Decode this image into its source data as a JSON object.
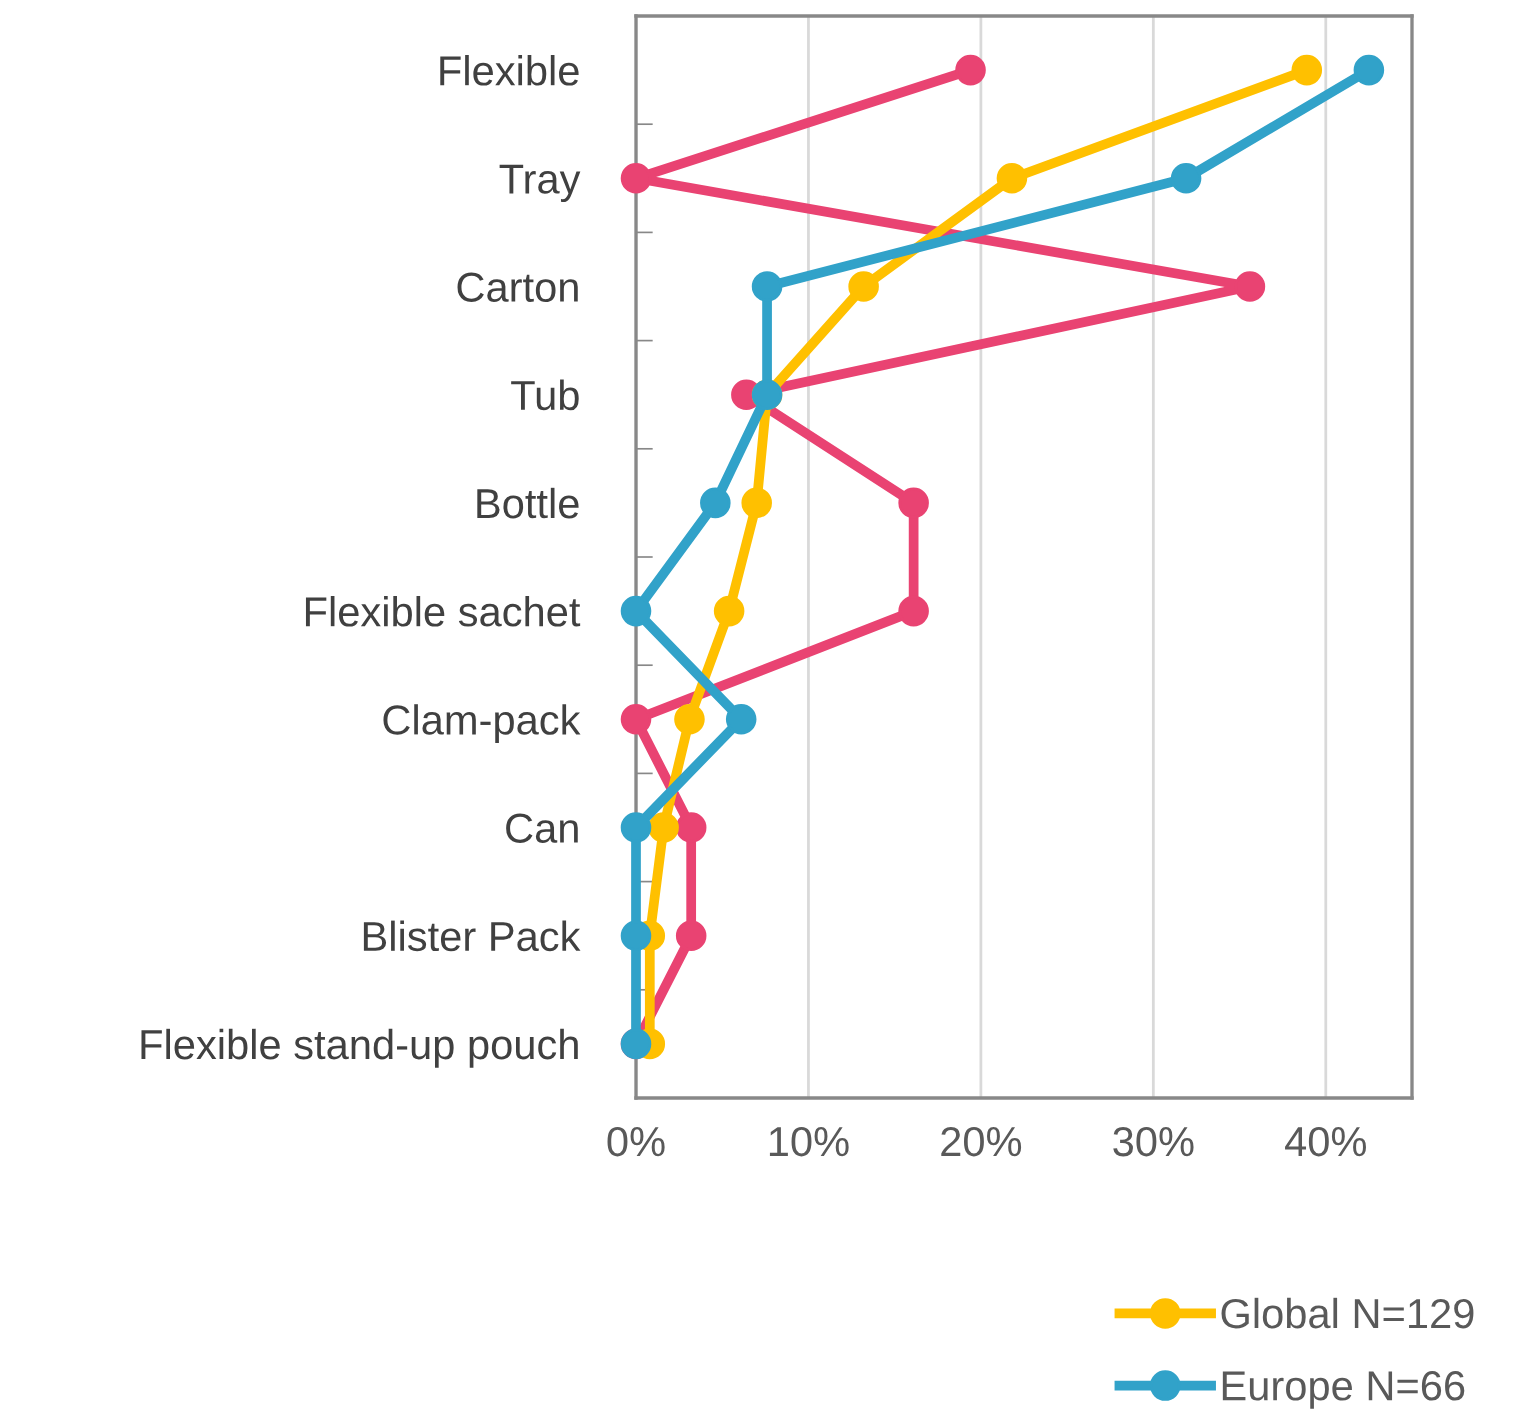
{
  "chart_data": {
    "type": "line",
    "orientation": "horizontal",
    "categories": [
      "Flexible",
      "Tray",
      "Carton",
      "Tub",
      "Bottle",
      "Flexible sachet",
      "Clam-pack",
      "Can",
      "Blister Pack",
      "Flexible stand-up pouch"
    ],
    "series": [
      {
        "color": "#e94372",
        "values": [
          19.4,
          0,
          35.6,
          6.4,
          16.1,
          16.1,
          0,
          3.2,
          3.2,
          0
        ]
      },
      {
        "name": "Global N=129",
        "color": "#ffc000",
        "values": [
          38.9,
          21.8,
          13.2,
          7.6,
          7.0,
          5.4,
          3.1,
          1.6,
          0.8,
          0.8
        ]
      },
      {
        "name": "Europe N=66",
        "color": "#31a2c9",
        "values": [
          42.5,
          31.9,
          7.6,
          7.6,
          4.6,
          0,
          6.1,
          0,
          0,
          0
        ]
      }
    ],
    "xlim": [
      0,
      45
    ],
    "xticks": [
      {
        "value": 0,
        "label": "0%"
      },
      {
        "value": 10,
        "label": "10%"
      },
      {
        "value": 20,
        "label": "20%"
      },
      {
        "value": 30,
        "label": "30%"
      },
      {
        "value": 40,
        "label": "40%"
      }
    ],
    "grid": "x",
    "marker": "circle",
    "legend": "bottom right"
  }
}
